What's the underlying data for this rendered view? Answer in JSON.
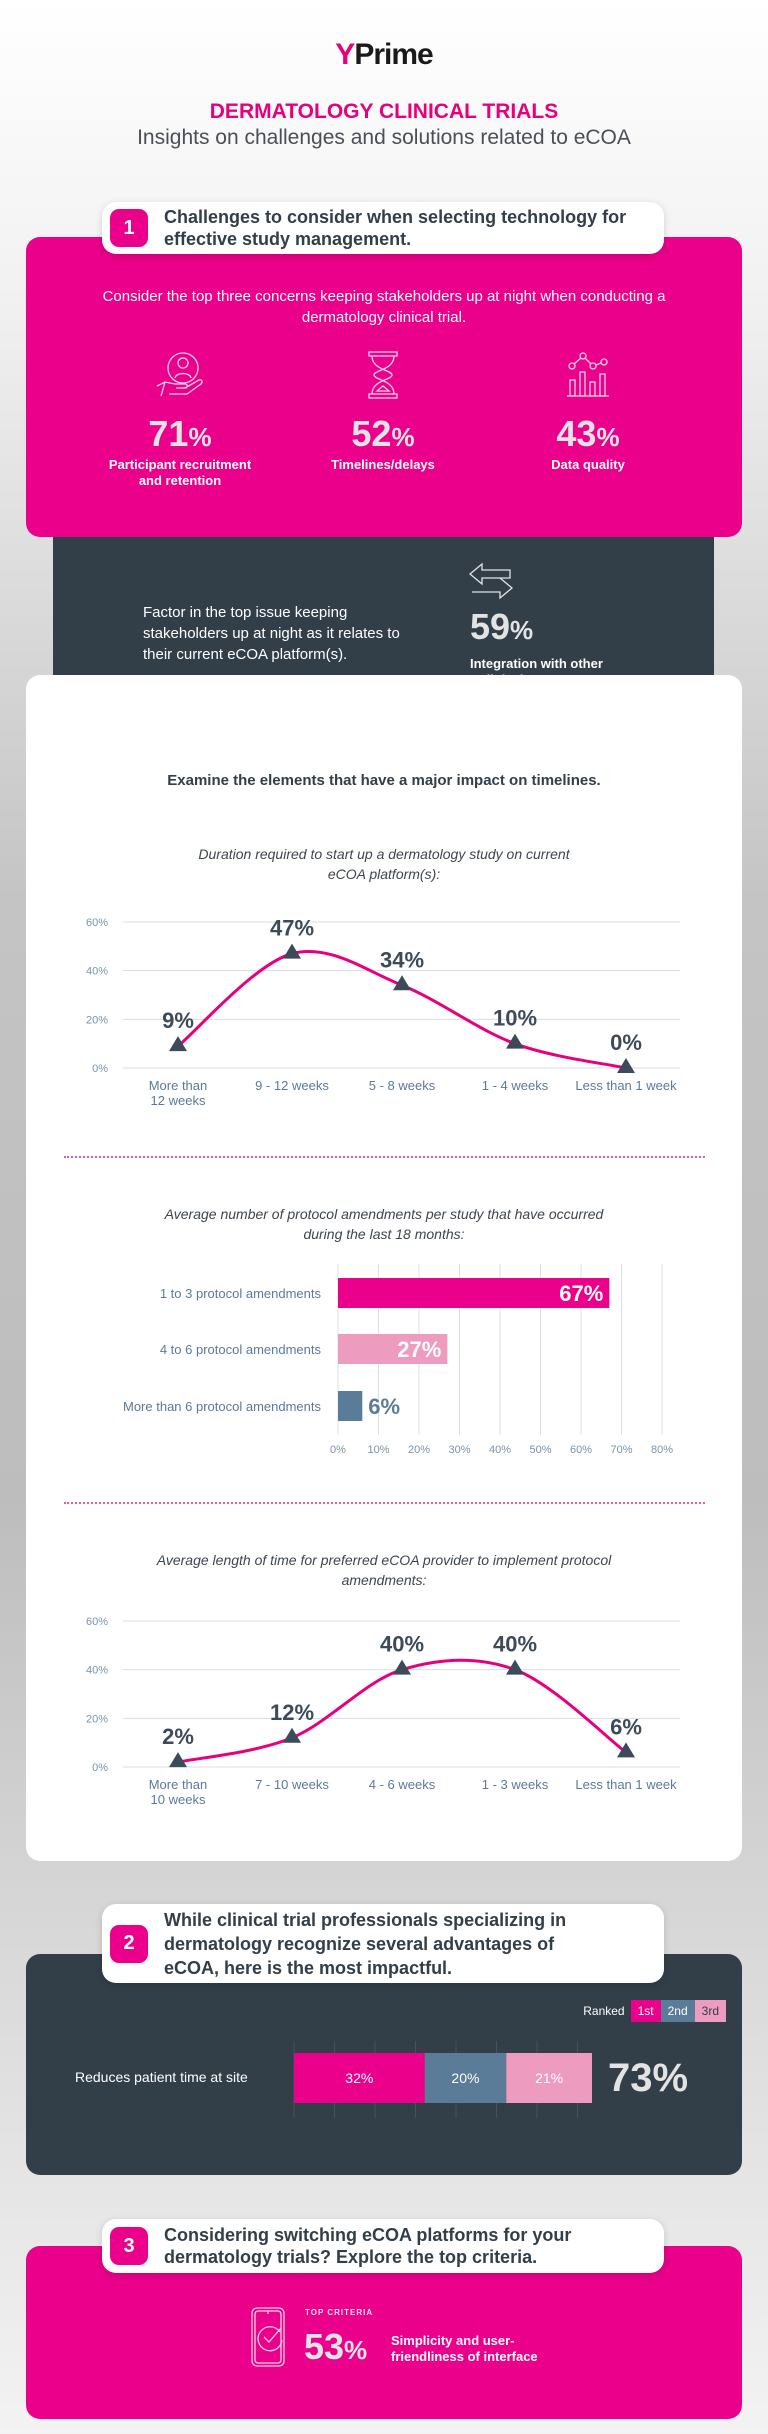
{
  "header": {
    "logo_text": "Prime",
    "logo_mark": "Y",
    "title": "DERMATOLOGY CLINICAL TRIALS",
    "subtitle": "Insights on challenges and solutions related to eCOA"
  },
  "section1": {
    "number": "1",
    "heading": "Challenges to consider when selecting technology for effective study management.",
    "intro": "Consider the top three concerns keeping stakeholders up at night when conducting a dermatology clinical trial.",
    "concerns": [
      {
        "icon": "hand-person-icon",
        "value": "71",
        "unit": "%",
        "label": "Participant recruitment and retention"
      },
      {
        "icon": "hourglass-icon",
        "value": "52",
        "unit": "%",
        "label": "Timelines/delays"
      },
      {
        "icon": "bar-line-chart-icon",
        "value": "43",
        "unit": "%",
        "label": "Data quality"
      }
    ],
    "factor": {
      "text": "Factor in the top issue keeping stakeholders up at night as it relates to their current eCOA platform(s).",
      "icon": "exchange-arrows-icon",
      "value": "59",
      "unit": "%",
      "label": "Integration with other eClinical systems"
    },
    "examine": "Examine the elements that have a major impact on timelines."
  },
  "chart_data": [
    {
      "type": "line",
      "title": "Duration required to start up a dermatology study on current eCOA platform(s):",
      "categories": [
        "More than 12 weeks",
        "9 - 12 weeks",
        "5 - 8 weeks",
        "1 - 4 weeks",
        "Less than 1 week"
      ],
      "values": [
        9,
        47,
        34,
        10,
        0
      ],
      "labels": [
        "9%",
        "47%",
        "34%",
        "10%",
        "0%"
      ],
      "yticks": [
        "0%",
        "20%",
        "40%",
        "60%"
      ],
      "ylim": [
        0,
        60
      ],
      "grid": true,
      "line_color": "#e6007e",
      "marker_color": "#3d4a5a"
    },
    {
      "type": "bar",
      "orientation": "horizontal",
      "title": "Average number of protocol amendments per study that have occurred during the last 18 months:",
      "categories": [
        "1 to 3 protocol amendments",
        "4 to 6 protocol amendments",
        "More than 6 protocol amendments"
      ],
      "values": [
        67,
        27,
        6
      ],
      "labels": [
        "67%",
        "27%",
        "6%"
      ],
      "colors": [
        "#ea008a",
        "#ee9bc0",
        "#5a7c99"
      ],
      "xticks": [
        "0%",
        "10%",
        "20%",
        "30%",
        "40%",
        "50%",
        "60%",
        "70%",
        "80%"
      ],
      "xlim": [
        0,
        80
      ],
      "grid": true
    },
    {
      "type": "line",
      "title": "Average length of time for preferred eCOA provider to implement protocol amendments:",
      "categories": [
        "More than 10 weeks",
        "7 - 10 weeks",
        "4 - 6 weeks",
        "1 - 3 weeks",
        "Less than 1 week"
      ],
      "values": [
        2,
        12,
        40,
        40,
        6
      ],
      "labels": [
        "2%",
        "12%",
        "40%",
        "40%",
        "6%"
      ],
      "yticks": [
        "0%",
        "20%",
        "40%",
        "60%"
      ],
      "ylim": [
        0,
        60
      ],
      "grid": true,
      "line_color": "#e6007e",
      "marker_color": "#3d4a5a"
    },
    {
      "type": "bar",
      "orientation": "horizontal",
      "stacked": true,
      "categories": [
        "Reduces patient time at site"
      ],
      "series": [
        {
          "name": "1st",
          "values": [
            32
          ],
          "color": "#ea008a"
        },
        {
          "name": "2nd",
          "values": [
            20
          ],
          "color": "#5a7c99"
        },
        {
          "name": "3rd",
          "values": [
            21
          ],
          "color": "#ee9bc0"
        }
      ],
      "labels": [
        "32%",
        "20%",
        "21%"
      ],
      "total": "73%",
      "legend_title": "Ranked",
      "legend": "top-right"
    }
  ],
  "section2": {
    "number": "2",
    "heading": "While clinical trial professionals specializing in dermatology recognize several advantages of eCOA, here is the most impactful."
  },
  "section3": {
    "number": "3",
    "heading": "Considering switching eCOA platforms for your dermatology trials? Explore the top criteria.",
    "icon": "phone-check-icon",
    "kicker": "TOP CRITERIA",
    "value": "53",
    "unit": "%",
    "label": "Simplicity and user-friendliness of interface"
  }
}
